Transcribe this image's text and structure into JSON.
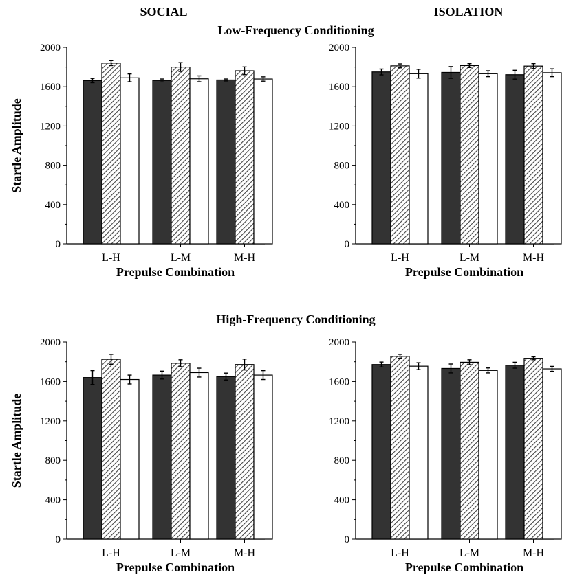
{
  "figure": {
    "col_titles": [
      "SOCIAL",
      "ISOLATION"
    ],
    "row_titles": [
      "Low-Frequency Conditioning",
      "High-Frequency Conditioning"
    ]
  },
  "colors": {
    "series1": "#333333",
    "series2_hatch": "#444444",
    "series3": "#ffffff",
    "axis": "#000000"
  },
  "chart_data": [
    {
      "type": "bar",
      "panel": "SOCIAL / Low-Frequency Conditioning",
      "categories": [
        "L-H",
        "L-M",
        "M-H"
      ],
      "xlabel": "Prepulse Combination",
      "ylabel": "Startle Amplitude",
      "ylim": [
        0,
        2000
      ],
      "yticks": [
        0,
        400,
        800,
        1200,
        1600,
        2000
      ],
      "series": [
        {
          "style": "solid-dark",
          "values": [
            1662,
            1663,
            1668
          ],
          "errors": [
            22,
            15,
            10
          ]
        },
        {
          "style": "hatched",
          "values": [
            1840,
            1800,
            1762
          ],
          "errors": [
            25,
            45,
            40
          ]
        },
        {
          "style": "white",
          "values": [
            1690,
            1680,
            1678
          ],
          "errors": [
            40,
            30,
            22
          ]
        }
      ]
    },
    {
      "type": "bar",
      "panel": "ISOLATION / Low-Frequency Conditioning",
      "categories": [
        "L-H",
        "L-M",
        "M-H"
      ],
      "xlabel": "Prepulse Combination",
      "ylabel": "",
      "ylim": [
        0,
        2000
      ],
      "yticks": [
        0,
        400,
        800,
        1200,
        1600,
        2000
      ],
      "series": [
        {
          "style": "solid-dark",
          "values": [
            1750,
            1745,
            1722
          ],
          "errors": [
            30,
            60,
            45
          ]
        },
        {
          "style": "hatched",
          "values": [
            1812,
            1815,
            1810
          ],
          "errors": [
            20,
            20,
            25
          ]
        },
        {
          "style": "white",
          "values": [
            1732,
            1732,
            1742
          ],
          "errors": [
            45,
            30,
            40
          ]
        }
      ]
    },
    {
      "type": "bar",
      "panel": "SOCIAL / High-Frequency Conditioning",
      "categories": [
        "L-H",
        "L-M",
        "M-H"
      ],
      "xlabel": "Prepulse Combination",
      "ylabel": "Startle Amplitude",
      "ylim": [
        0,
        2000
      ],
      "yticks": [
        0,
        400,
        800,
        1200,
        1600,
        2000
      ],
      "series": [
        {
          "style": "solid-dark",
          "values": [
            1640,
            1665,
            1650
          ],
          "errors": [
            70,
            40,
            35
          ]
        },
        {
          "style": "hatched",
          "values": [
            1825,
            1785,
            1772
          ],
          "errors": [
            50,
            35,
            55
          ]
        },
        {
          "style": "white",
          "values": [
            1620,
            1690,
            1665
          ],
          "errors": [
            45,
            45,
            45
          ]
        }
      ]
    },
    {
      "type": "bar",
      "panel": "ISOLATION / High-Frequency Conditioning",
      "categories": [
        "L-H",
        "L-M",
        "M-H"
      ],
      "xlabel": "Prepulse Combination",
      "ylabel": "",
      "ylim": [
        0,
        2000
      ],
      "yticks": [
        0,
        400,
        800,
        1200,
        1600,
        2000
      ],
      "series": [
        {
          "style": "solid-dark",
          "values": [
            1772,
            1732,
            1765
          ],
          "errors": [
            25,
            45,
            30
          ]
        },
        {
          "style": "hatched",
          "values": [
            1855,
            1795,
            1835
          ],
          "errors": [
            20,
            25,
            15
          ]
        },
        {
          "style": "white",
          "values": [
            1755,
            1712,
            1728
          ],
          "errors": [
            35,
            25,
            25
          ]
        }
      ]
    }
  ]
}
